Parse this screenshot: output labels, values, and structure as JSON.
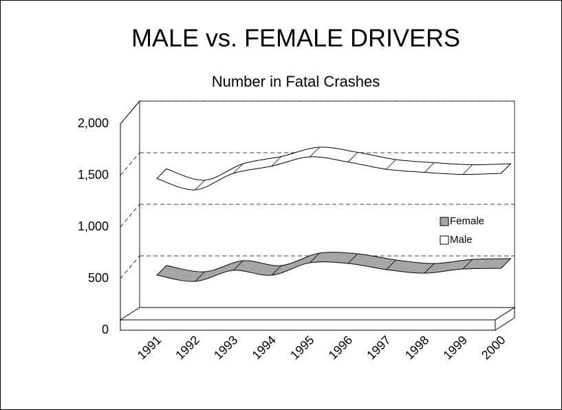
{
  "chart_data": {
    "type": "line3d",
    "title": "MALE vs. FEMALE DRIVERS",
    "subtitle": "Number in Fatal Crashes",
    "categories": [
      "1991",
      "1992",
      "1993",
      "1994",
      "1995",
      "1996",
      "1997",
      "1998",
      "1999",
      "2000"
    ],
    "series": [
      {
        "name": "Female",
        "color": "#a6a6a6",
        "values": [
          493,
          433,
          540,
          493,
          613,
          607,
          547,
          513,
          553,
          560
        ]
      },
      {
        "name": "Male",
        "color": "#ffffff",
        "values": [
          1430,
          1320,
          1480,
          1550,
          1640,
          1590,
          1520,
          1490,
          1470,
          1480
        ]
      }
    ],
    "ylim": [
      0,
      2000
    ],
    "yticks": [
      0,
      {
        "value": 500,
        "label": "500"
      },
      {
        "value": 1000,
        "label": "1,000"
      },
      {
        "value": 1500,
        "label": "1,500"
      },
      {
        "value": 2000,
        "label": "2,000"
      }
    ],
    "grid": true,
    "legend": "right"
  }
}
